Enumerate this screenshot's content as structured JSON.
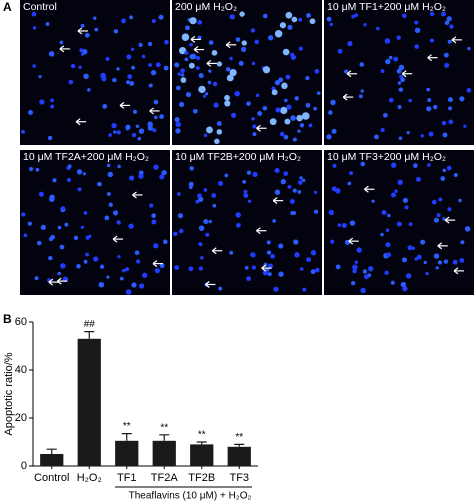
{
  "figure": {
    "panel_a_label": "A",
    "panel_b_label": "B",
    "images": [
      "Control",
      "200 μM H₂O₂",
      "10 μM TF1+200 μM H₂O₂",
      "10 μM TF2A+200 μM H₂O₂",
      "10 μM TF2B+200 μM H₂O₂",
      "10 μM TF3+200 μM H₂O₂"
    ]
  },
  "chart_data": {
    "type": "bar",
    "y_label": "Apoptotic ratio/%",
    "categories": [
      "Control",
      "H₂O₂",
      "TF1",
      "TF2A",
      "TF2B",
      "TF3"
    ],
    "values": [
      5,
      53,
      10.5,
      10.5,
      9,
      8
    ],
    "errors": [
      2,
      3,
      3,
      2.5,
      1,
      1
    ],
    "significance": [
      null,
      "##",
      "**",
      "**",
      "**",
      "**"
    ],
    "group_label": "Theaflavins (10 μM) + H₂O₂",
    "color": "#1a1a1a",
    "ylim": [
      0,
      60
    ],
    "yticks": [
      0,
      20,
      40,
      60
    ]
  }
}
